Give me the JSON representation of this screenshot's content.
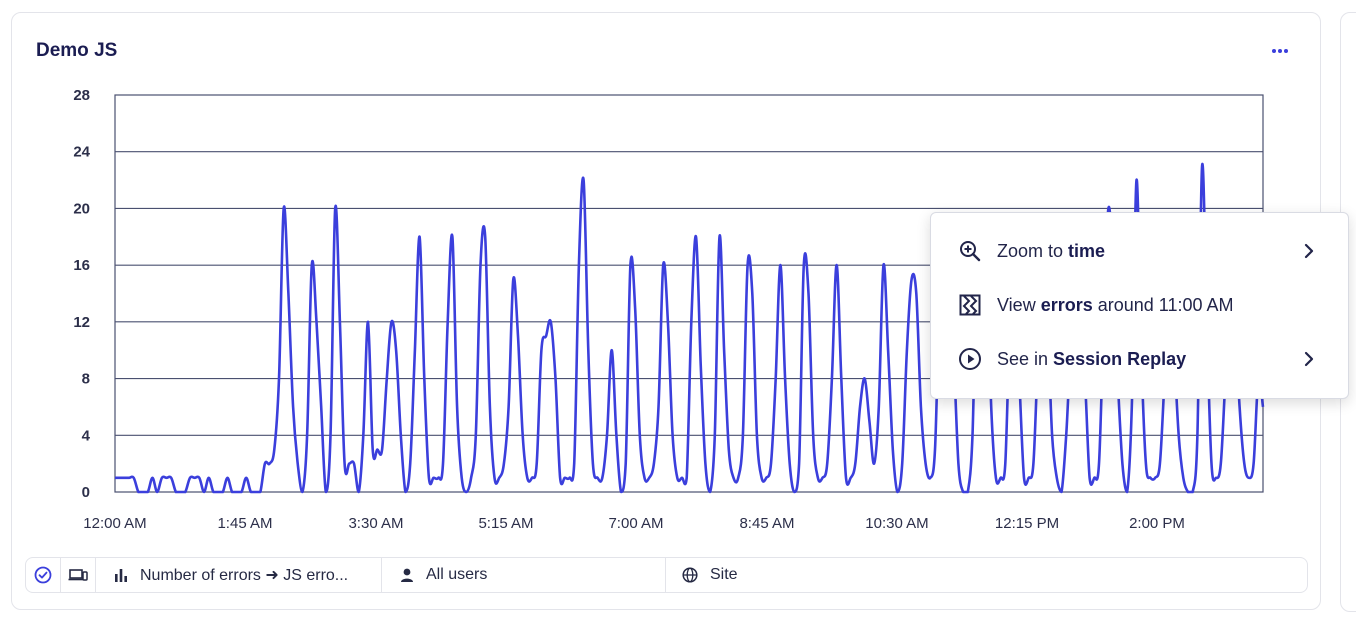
{
  "widget": {
    "title": "Demo JS",
    "more_icon": "more-horizontal-icon"
  },
  "chart_data": {
    "type": "line",
    "title": "",
    "xlabel": "",
    "ylabel": "",
    "ylim": [
      0,
      28
    ],
    "yticks": [
      "0",
      "4",
      "8",
      "12",
      "16",
      "20",
      "24",
      "28"
    ],
    "xticks": [
      "12:00 AM",
      "1:45 AM",
      "3:30 AM",
      "5:15 AM",
      "7:00 AM",
      "8:45 AM",
      "10:30 AM",
      "12:15 PM",
      "2:00 PM"
    ],
    "grid": true,
    "series_color": "#3b3fdc",
    "series": [
      {
        "values": [
          1,
          1,
          1,
          1,
          1,
          0,
          0,
          0,
          1,
          0,
          1,
          1,
          1,
          0,
          0,
          0,
          1,
          1,
          1,
          0,
          1,
          0,
          0,
          0,
          1,
          0,
          0,
          0,
          1,
          0,
          0,
          0,
          2,
          2,
          3,
          8,
          20,
          14,
          6,
          2,
          0,
          4,
          16,
          12,
          6,
          0,
          4,
          20,
          12,
          2,
          2,
          2,
          0,
          4,
          12,
          3,
          3,
          3,
          8,
          12,
          10,
          4,
          0,
          2,
          10,
          18,
          8,
          1,
          1,
          1,
          2,
          12,
          18,
          6,
          1,
          0,
          1,
          4,
          16,
          18,
          6,
          1,
          1,
          2,
          6,
          15,
          11,
          4,
          1,
          1,
          2,
          10,
          11,
          12,
          8,
          1,
          1,
          1,
          2,
          16,
          22,
          10,
          2,
          1,
          1,
          4,
          10,
          4,
          0,
          2,
          16,
          13,
          4,
          1,
          1,
          2,
          6,
          16,
          12,
          4,
          1,
          1,
          1,
          12,
          18,
          9,
          2,
          0,
          4,
          18,
          10,
          3,
          1,
          1,
          4,
          16,
          14,
          4,
          1,
          1,
          2,
          8,
          16,
          8,
          2,
          0,
          2,
          16,
          14,
          4,
          1,
          1,
          2,
          8,
          16,
          8,
          1,
          1,
          2,
          6,
          8,
          5,
          2,
          6,
          16,
          10,
          3,
          0,
          2,
          10,
          15,
          14,
          6,
          2,
          1,
          3,
          14,
          18,
          19,
          10,
          2,
          0,
          0,
          4,
          17,
          17,
          17,
          6,
          1,
          1,
          2,
          12,
          16,
          8,
          1,
          1,
          2,
          10,
          17,
          12,
          4,
          1,
          0,
          4,
          10,
          10,
          12,
          8,
          1,
          1,
          2,
          12,
          20,
          16,
          8,
          2,
          0,
          6,
          22,
          10,
          2,
          1,
          1,
          2,
          8,
          14,
          10,
          4,
          1,
          0,
          0,
          4,
          23,
          12,
          2,
          1,
          2,
          8,
          12,
          12,
          6,
          2,
          1,
          2,
          8,
          6
        ]
      }
    ]
  },
  "context_menu": {
    "items": [
      {
        "icon": "zoom-in-icon",
        "prefix": "Zoom to ",
        "bold": "time",
        "suffix": "",
        "chevron": true
      },
      {
        "icon": "errors-logo-icon",
        "prefix": "View ",
        "bold": "errors",
        "suffix": " around 11:00 AM",
        "chevron": false
      },
      {
        "icon": "play-circle-icon",
        "prefix": "See in ",
        "bold": "Session Replay",
        "suffix": "",
        "chevron": true
      }
    ]
  },
  "filters": {
    "status_icon": "check-circle-icon",
    "device_icon": "devices-icon",
    "metric_icon": "bar-chart-icon",
    "metric_label": "Number of errors ➜ JS erro...",
    "users_icon": "user-icon",
    "users_label": "All users",
    "site_icon": "globe-icon",
    "site_label": "Site"
  }
}
